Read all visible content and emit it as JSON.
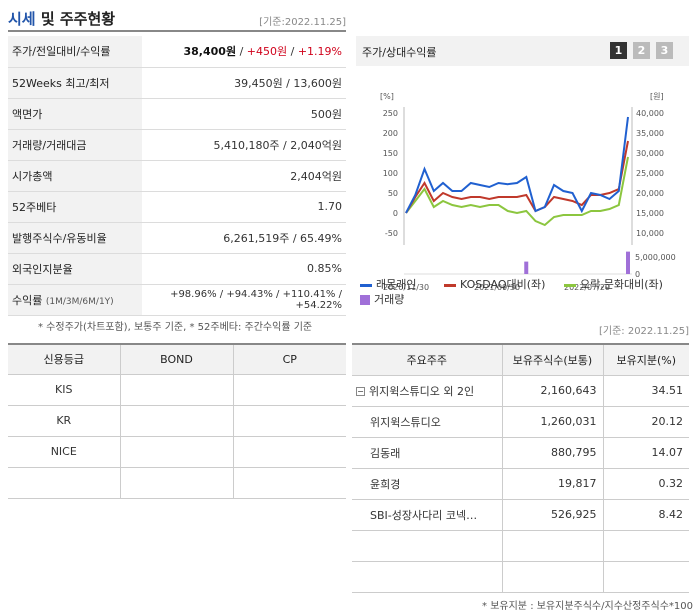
{
  "header": {
    "title_hl": "시세",
    "title_rest": " 및 주주현황",
    "asof": "[기준:2022.11.25]"
  },
  "info": {
    "rows": [
      {
        "label": "주가/전일대비/수익률",
        "price": "38,400원",
        "sep1": " / ",
        "change": "+450원",
        "sep2": " / ",
        "rate": "+1.19%"
      },
      {
        "label": "52Weeks 최고/최저",
        "value": "39,450원 / 13,600원"
      },
      {
        "label": "액면가",
        "value": "500원"
      },
      {
        "label": "거래량/거래대금",
        "value": "5,410,180주 / 2,040억원"
      },
      {
        "label": "시가총액",
        "value": "2,404억원"
      },
      {
        "label": "52주베타",
        "value": "1.70"
      },
      {
        "label": "발행주식수/유동비율",
        "value": "6,261,519주 / 65.49%"
      },
      {
        "label": "외국인지분율",
        "value": "0.85%"
      }
    ],
    "returns": {
      "label": "수익률",
      "sublabel": "(1M/3M/6M/1Y)",
      "values": [
        "+98.96%",
        "+94.43%",
        "+110.41%",
        "+54.22%"
      ]
    },
    "footnote": "* 수정주가(차트포함), 보통주 기준, * 52주베타: 주간수익률 기준"
  },
  "chart": {
    "title": "주가/상대수익률",
    "pages": [
      "1",
      "2",
      "3"
    ],
    "left_unit": "[%]",
    "right_unit": "[원]",
    "left_ticks": [
      "250",
      "200",
      "150",
      "100",
      "50",
      "0",
      "-50"
    ],
    "right_ticks": [
      "40,000",
      "35,000",
      "30,000",
      "25,000",
      "20,000",
      "15,000",
      "10,000"
    ],
    "vol_ticks": [
      "5,000,000",
      "0"
    ],
    "x_labels": [
      "2020/11/30",
      "2021/09/30",
      "2022/07/29"
    ],
    "legend": [
      {
        "name": "래몽래인",
        "color": "#2060d0"
      },
      {
        "name": "KOSDAQ대비(좌)",
        "color": "#c0392b"
      },
      {
        "name": "오락,문화대비(좌)",
        "color": "#8cc63f"
      },
      {
        "name": "거래량",
        "color": "#a070d8"
      }
    ]
  },
  "chart_data": {
    "type": "line",
    "x": [
      "2020/11/30",
      "2020/12",
      "2021/01",
      "2021/02",
      "2021/03",
      "2021/04",
      "2021/05",
      "2021/06",
      "2021/07",
      "2021/08",
      "2021/09",
      "2021/10",
      "2021/11",
      "2021/12",
      "2022/01",
      "2022/02",
      "2022/03",
      "2022/04",
      "2022/05",
      "2022/06",
      "2022/07",
      "2022/08",
      "2022/09",
      "2022/10",
      "2022/11"
    ],
    "series": [
      {
        "name": "래몽래인",
        "values": [
          0,
          45,
          110,
          55,
          75,
          55,
          55,
          75,
          70,
          65,
          75,
          72,
          75,
          90,
          5,
          15,
          70,
          55,
          50,
          5,
          50,
          45,
          35,
          55,
          240
        ]
      },
      {
        "name": "KOSDAQ대비(좌)",
        "values": [
          0,
          40,
          75,
          30,
          50,
          40,
          35,
          40,
          40,
          35,
          40,
          40,
          40,
          45,
          5,
          15,
          40,
          35,
          30,
          20,
          45,
          45,
          50,
          60,
          180
        ]
      },
      {
        "name": "오락,문화대비(좌)",
        "values": [
          0,
          30,
          60,
          15,
          30,
          20,
          15,
          20,
          15,
          20,
          20,
          5,
          0,
          5,
          -20,
          -30,
          -10,
          -5,
          -5,
          -5,
          5,
          5,
          10,
          20,
          140
        ]
      }
    ],
    "volume": {
      "name": "거래량",
      "spikes": [
        {
          "x": "2021/12",
          "value": 3000000
        },
        {
          "x": "2022/11",
          "value": 5410180
        }
      ]
    },
    "ylim": [
      -50,
      250
    ],
    "y2lim": [
      10000,
      40000
    ],
    "grid": false,
    "legend_position": "bottom"
  },
  "asof2": "[기준: 2022.11.25]",
  "credit": {
    "headers": [
      "신용등급",
      "BOND",
      "CP"
    ],
    "rows": [
      {
        "agency": "KIS",
        "bond": "",
        "cp": ""
      },
      {
        "agency": "KR",
        "bond": "",
        "cp": ""
      },
      {
        "agency": "NICE",
        "bond": "",
        "cp": ""
      },
      {
        "agency": "",
        "bond": "",
        "cp": ""
      }
    ]
  },
  "holders": {
    "headers": [
      "주요주주",
      "보유주식수(보통)",
      "보유지분(%)"
    ],
    "rows": [
      {
        "name": "위지윅스튜디오 외 2인",
        "shares": "2,160,643",
        "pct": "34.51",
        "top": true
      },
      {
        "name": "위지윅스튜디오",
        "shares": "1,260,031",
        "pct": "20.12"
      },
      {
        "name": "김동래",
        "shares": "880,795",
        "pct": "14.07"
      },
      {
        "name": "윤희경",
        "shares": "19,817",
        "pct": "0.32"
      },
      {
        "name": "SBI-성장사다리 코넥…",
        "shares": "526,925",
        "pct": "8.42"
      },
      {
        "name": "",
        "shares": "",
        "pct": ""
      },
      {
        "name": "",
        "shares": "",
        "pct": ""
      }
    ],
    "footnote": "* 보유지분 : 보유지분주식수/지수산정주식수*100"
  }
}
